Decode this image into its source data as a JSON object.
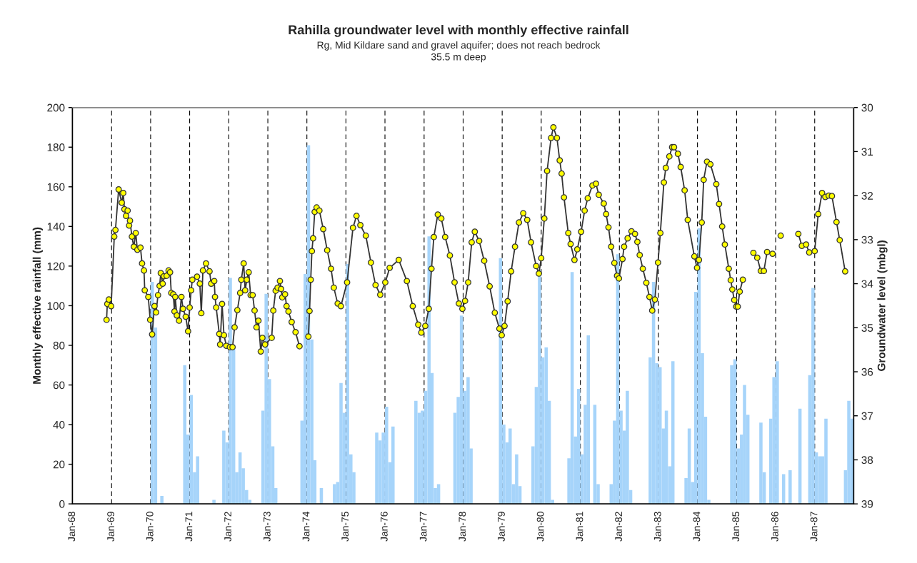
{
  "chart_data": {
    "type": "bar",
    "title": "Rahilla groundwater level with monthly effective rainfall",
    "subtitle": "Rg, Mid Kildare sand and gravel aquifer; does not reach bedrock\n35.5 m deep",
    "ylabel": "Monthly effective rainfall (mm)",
    "y2label": "Groundwater level (mbgl)",
    "xlim": [
      "1968-01",
      "1988-01"
    ],
    "xticks": [
      {
        "value": "1968-01",
        "label": "Jan-68"
      },
      {
        "value": "1969-01",
        "label": "Jan-69"
      },
      {
        "value": "1970-01",
        "label": "Jan-70"
      },
      {
        "value": "1971-01",
        "label": "Jan-71"
      },
      {
        "value": "1972-01",
        "label": "Jan-72"
      },
      {
        "value": "1973-01",
        "label": "Jan-73"
      },
      {
        "value": "1974-01",
        "label": "Jan-74"
      },
      {
        "value": "1975-01",
        "label": "Jan-75"
      },
      {
        "value": "1976-01",
        "label": "Jan-76"
      },
      {
        "value": "1977-01",
        "label": "Jan-77"
      },
      {
        "value": "1978-01",
        "label": "Jan-78"
      },
      {
        "value": "1979-01",
        "label": "Jan-79"
      },
      {
        "value": "1980-01",
        "label": "Jan-80"
      },
      {
        "value": "1981-01",
        "label": "Jan-81"
      },
      {
        "value": "1982-01",
        "label": "Jan-82"
      },
      {
        "value": "1983-01",
        "label": "Jan-83"
      },
      {
        "value": "1984-01",
        "label": "Jan-84"
      },
      {
        "value": "1985-01",
        "label": "Jan-85"
      },
      {
        "value": "1986-01",
        "label": "Jan-86"
      },
      {
        "value": "1987-01",
        "label": "Jan-87"
      }
    ],
    "ylim": [
      0,
      200
    ],
    "yticks": [
      0,
      20,
      40,
      60,
      80,
      100,
      120,
      140,
      160,
      180,
      200
    ],
    "y2lim": [
      39,
      30
    ],
    "y2ticks": [
      30,
      31,
      32,
      33,
      34,
      35,
      36,
      37,
      38,
      39
    ],
    "grid": "x",
    "series": [
      {
        "color": "#a6d4fa",
        "x": [
          "1970-01",
          "1970-02",
          "1970-04",
          "1970-11",
          "1970-12",
          "1971-01",
          "1971-02",
          "1971-03",
          "1971-08",
          "1971-11",
          "1971-12",
          "1972-01",
          "1972-02",
          "1972-03",
          "1972-04",
          "1972-05",
          "1972-06",
          "1972-07",
          "1972-11",
          "1972-12",
          "1973-01",
          "1973-02",
          "1973-03",
          "1973-11",
          "1973-12",
          "1974-01",
          "1974-02",
          "1974-03",
          "1974-05",
          "1974-09",
          "1974-10",
          "1974-11",
          "1974-12",
          "1975-01",
          "1975-02",
          "1975-03",
          "1975-10",
          "1975-11",
          "1975-12",
          "1976-01",
          "1976-02",
          "1976-03",
          "1976-10",
          "1976-11",
          "1976-12",
          "1977-01",
          "1977-02",
          "1977-03",
          "1977-04",
          "1977-05",
          "1977-10",
          "1977-11",
          "1977-12",
          "1978-01",
          "1978-02",
          "1978-03",
          "1978-12",
          "1979-01",
          "1979-02",
          "1979-03",
          "1979-04",
          "1979-05",
          "1979-06",
          "1979-10",
          "1979-11",
          "1979-12",
          "1980-01",
          "1980-02",
          "1980-03",
          "1980-04",
          "1980-09",
          "1980-10",
          "1980-11",
          "1980-12",
          "1981-01",
          "1981-02",
          "1981-03",
          "1981-05",
          "1981-06",
          "1981-10",
          "1981-11",
          "1981-12",
          "1982-01",
          "1982-02",
          "1982-03",
          "1982-04",
          "1982-10",
          "1982-11",
          "1982-12",
          "1983-01",
          "1983-02",
          "1983-03",
          "1983-04",
          "1983-05",
          "1983-09",
          "1983-10",
          "1983-11",
          "1983-12",
          "1984-01",
          "1984-02",
          "1984-03",
          "1984-04",
          "1984-11",
          "1984-12",
          "1985-01",
          "1985-02",
          "1985-03",
          "1985-04",
          "1985-08",
          "1985-09",
          "1985-11",
          "1985-12",
          "1986-01",
          "1986-03",
          "1986-05",
          "1986-08",
          "1986-11",
          "1986-12",
          "1987-01",
          "1987-02",
          "1987-03",
          "1987-04",
          "1987-10",
          "1987-11",
          "1987-12"
        ],
        "values": [
          112,
          89,
          4,
          70,
          35,
          55,
          16,
          24,
          2,
          37,
          31,
          114,
          80,
          16,
          26,
          18,
          7,
          2,
          47,
          106,
          63,
          29,
          8,
          42,
          116,
          181,
          83,
          22,
          8,
          10,
          11,
          61,
          46,
          121,
          25,
          16,
          36,
          32,
          36,
          49,
          21,
          39,
          52,
          46,
          47,
          57,
          135,
          66,
          8,
          10,
          46,
          54,
          95,
          57,
          64,
          28,
          124,
          40,
          31,
          38,
          10,
          25,
          9,
          29,
          59,
          118,
          74,
          79,
          52,
          2,
          23,
          117,
          34,
          58,
          25,
          50,
          85,
          50,
          10,
          10,
          42,
          126,
          47,
          37,
          57,
          7,
          74,
          112,
          71,
          69,
          38,
          47,
          19,
          72,
          13,
          38,
          11,
          107,
          139,
          76,
          44,
          2,
          70,
          73,
          28,
          35,
          60,
          45,
          41,
          16,
          43,
          64,
          72,
          15,
          17,
          48,
          65,
          109,
          26,
          24,
          24,
          43,
          17,
          52,
          43
        ]
      },
      {
        "type": "line",
        "axis": "y2",
        "color": "#ffff00",
        "marker": "circle",
        "line_style": "solid",
        "x": [
          "1968-11-15",
          "1968-11-22",
          "1968-12-06",
          "1968-12-28",
          "1969-01-26",
          "1969-02-06",
          "1969-03-08",
          "1969-04-06",
          "1969-04-20",
          "1969-05-01",
          "1969-05-16",
          "1969-05-31",
          "1969-06-14",
          "1969-06-22",
          "1969-07-10",
          "1969-07-28",
          "1969-08-15",
          "1969-08-30",
          "1969-09-28",
          "1969-10-13",
          "1969-10-31",
          "1969-11-07",
          "1969-12-10",
          "1969-12-28",
          "1970-01-15",
          "1970-02-06",
          "1970-02-21",
          "1970-03-11",
          "1970-03-26",
          "1970-04-06",
          "1970-04-24",
          "1970-05-05",
          "1970-05-31",
          "1970-06-18",
          "1970-07-02",
          "1970-07-13",
          "1970-08-01",
          "1970-08-12",
          "1970-08-19",
          "1970-09-03",
          "1970-09-24",
          "1970-10-16",
          "1970-10-31",
          "1970-11-25",
          "1970-12-17",
          "1971-01-01",
          "1971-01-15",
          "1971-01-26",
          "1971-03-11",
          "1971-04-06",
          "1971-04-20",
          "1971-05-05",
          "1971-06-03",
          "1971-07-06",
          "1971-07-21",
          "1971-08-19",
          "1971-08-26",
          "1971-09-06",
          "1971-10-05",
          "1971-10-13",
          "1971-10-31",
          "1971-11-18",
          "1971-12-10",
          "1972-01-12",
          "1972-02-06",
          "1972-02-25",
          "1972-03-22",
          "1972-04-17",
          "1972-04-28",
          "1972-05-20",
          "1972-06-03",
          "1972-06-18",
          "1972-07-06",
          "1972-07-24",
          "1972-08-12",
          "1972-08-30",
          "1972-09-17",
          "1972-10-05",
          "1972-10-27",
          "1972-11-11",
          "1972-12-06",
          "1973-02-06",
          "1973-02-21",
          "1973-03-15",
          "1973-04-02",
          "1973-04-24",
          "1973-05-05",
          "1973-05-16",
          "1973-06-11",
          "1973-06-25",
          "1973-07-13",
          "1973-08-12",
          "1973-09-17",
          "1973-10-24",
          "1973-11-25",
          "1974-01-15",
          "1974-01-26",
          "1974-02-06",
          "1974-02-17",
          "1974-02-28",
          "1974-03-15",
          "1974-04-02",
          "1974-04-28",
          "1974-06-03",
          "1974-07-10",
          "1974-08-15",
          "1974-09-10",
          "1974-10-16",
          "1974-11-15",
          "1975-01-12",
          "1975-03-08",
          "1975-04-10",
          "1975-05-16",
          "1975-07-06",
          "1975-08-23",
          "1975-10-05",
          "1975-11-18",
          "1976-01-04",
          "1976-02-14",
          "1976-05-09",
          "1976-07-24",
          "1976-09-17",
          "1976-11-07",
          "1976-12-06",
          "1977-01-12",
          "1977-02-14",
          "1977-03-11",
          "1977-04-02",
          "1977-05-09",
          "1977-06-11",
          "1977-07-17",
          "1977-08-30",
          "1977-10-13",
          "1977-11-22",
          "1977-12-25",
          "1978-01-19",
          "1978-02-17",
          "1978-03-22",
          "1978-04-20",
          "1978-05-31",
          "1978-07-17",
          "1978-09-06",
          "1978-10-24",
          "1978-12-06",
          "1978-12-28",
          "1979-01-23",
          "1979-02-21",
          "1979-03-26",
          "1979-05-01",
          "1979-06-07",
          "1979-07-17",
          "1979-08-23",
          "1979-09-28",
          "1979-11-15",
          "1979-12-10",
          "1980-01-01",
          "1980-01-30",
          "1980-02-25",
          "1980-04-02",
          "1980-04-24",
          "1980-05-27",
          "1980-06-22",
          "1980-07-10",
          "1980-08-01",
          "1980-09-10",
          "1980-10-02",
          "1980-11-07",
          "1980-12-03",
          "1981-01-08",
          "1981-02-10",
          "1981-03-11",
          "1981-04-24",
          "1981-05-27",
          "1981-06-22",
          "1981-08-08",
          "1981-08-30",
          "1981-09-21",
          "1981-10-16",
          "1981-11-15",
          "1981-12-10",
          "1981-12-28",
          "1982-01-30",
          "1982-02-14",
          "1982-03-19",
          "1982-04-24",
          "1982-05-27",
          "1982-06-18",
          "1982-07-10",
          "1982-08-08",
          "1982-09-10",
          "1982-10-09",
          "1982-11-04",
          "1982-11-29",
          "1982-12-28",
          "1983-01-19",
          "1983-02-21",
          "1983-03-11",
          "1983-04-13",
          "1983-05-09",
          "1983-05-27",
          "1983-07-02",
          "1983-07-28",
          "1983-09-03",
          "1983-10-02",
          "1983-12-03",
          "1983-12-28",
          "1984-01-15",
          "1984-02-10",
          "1984-02-28",
          "1984-03-30",
          "1984-05-01",
          "1984-06-25",
          "1984-07-21",
          "1984-08-19",
          "1984-09-13",
          "1984-10-20",
          "1984-11-07",
          "1984-11-22",
          "1984-12-10",
          "1984-12-28",
          "1985-01-12",
          "1985-01-30",
          "1985-02-28",
          "1985-04-20",
          "1985-06-07",
          "1985-07-13",
          "1985-08-15",
          "1985-09-13",
          "1985-10-13",
          "1985-12-03",
          "1986-01-01",
          "1986-02-17",
          "1986-05-27",
          "1986-08-01",
          "1986-09-03",
          "1986-10-13",
          "1986-11-11",
          "1987-01-01",
          "1987-02-03",
          "1987-03-11",
          "1987-04-10",
          "1987-05-12",
          "1987-06-11",
          "1987-07-24",
          "1987-08-23",
          "1987-10-13"
        ],
        "values": [
          34.82,
          34.46,
          34.36,
          34.51,
          32.93,
          32.78,
          31.86,
          32.16,
          31.94,
          32.31,
          32.46,
          32.34,
          32.68,
          32.57,
          32.93,
          33.16,
          32.85,
          33.23,
          33.18,
          33.54,
          33.7,
          34.15,
          34.3,
          34.82,
          35.15,
          34.51,
          34.65,
          34.26,
          34.05,
          33.76,
          34.0,
          33.83,
          33.82,
          33.7,
          33.74,
          34.21,
          34.24,
          34.63,
          34.3,
          34.72,
          34.84,
          34.3,
          34.57,
          34.75,
          35.08,
          34.54,
          34.15,
          33.91,
          33.84,
          34.0,
          34.67,
          33.7,
          33.54,
          33.72,
          34.0,
          33.94,
          34.3,
          34.54,
          35.14,
          35.38,
          34.46,
          35.17,
          35.41,
          35.44,
          35.44,
          34.99,
          34.6,
          34.21,
          33.91,
          33.54,
          34.15,
          33.91,
          33.74,
          34.26,
          34.26,
          34.61,
          34.99,
          34.84,
          35.54,
          35.23,
          35.38,
          35.23,
          34.61,
          34.16,
          34.09,
          33.94,
          34.12,
          34.31,
          34.24,
          34.51,
          34.63,
          34.87,
          35.1,
          35.42,
          null,
          35.2,
          34.62,
          33.91,
          33.26,
          32.97,
          32.37,
          32.27,
          32.34,
          32.76,
          33.24,
          33.66,
          34.09,
          34.45,
          34.51,
          33.97,
          32.73,
          32.46,
          32.67,
          32.91,
          33.52,
          34.03,
          34.25,
          33.97,
          33.64,
          33.46,
          33.94,
          34.51,
          34.93,
          35.11,
          34.96,
          34.57,
          33.66,
          32.94,
          32.43,
          32.52,
          32.94,
          33.36,
          33.97,
          34.45,
          34.57,
          34.39,
          33.97,
          33.06,
          32.82,
          33.03,
          33.48,
          34.06,
          34.66,
          35.02,
          35.17,
          34.96,
          34.4,
          33.72,
          33.16,
          32.61,
          32.4,
          32.55,
          33.06,
          33.6,
          33.77,
          33.42,
          32.52,
          31.44,
          30.69,
          30.45,
          30.69,
          31.2,
          31.5,
          32.04,
          32.85,
          33.1,
          33.46,
          33.22,
          32.82,
          32.34,
          32.06,
          31.77,
          31.73,
          31.98,
          32.18,
          32.42,
          32.72,
          33.16,
          33.53,
          33.82,
          33.88,
          33.44,
          33.16,
          32.97,
          32.81,
          32.87,
          33.05,
          33.35,
          33.66,
          33.98,
          34.3,
          34.61,
          34.36,
          33.52,
          32.85,
          31.7,
          31.37,
          31.11,
          30.9,
          30.9,
          31.05,
          31.35,
          31.88,
          32.55,
          33.38,
          33.64,
          33.46,
          32.61,
          31.64,
          31.23,
          31.29,
          31.74,
          32.19,
          32.7,
          33.11,
          33.66,
          33.92,
          34.13,
          34.37,
          34.52,
          34.52,
          34.18,
          33.91,
          null,
          33.3,
          33.41,
          33.71,
          33.71,
          33.28,
          33.32,
          null,
          32.91,
          null,
          32.87,
          33.14,
          33.11,
          33.29,
          33.26,
          32.42,
          31.94,
          32.03,
          32.0,
          32.01,
          32.6,
          33.01,
          33.72
        ]
      }
    ]
  }
}
